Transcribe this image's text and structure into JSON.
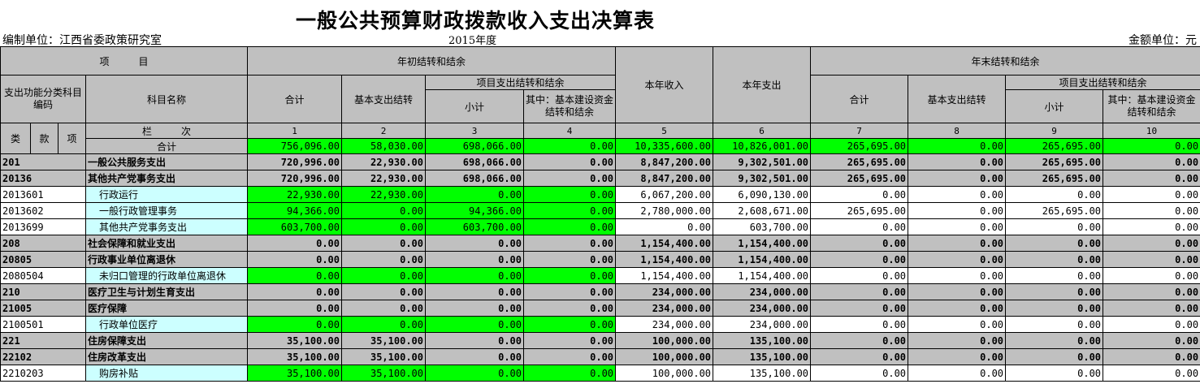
{
  "title": "一般公共预算财政拨款收入支出决算表",
  "unit_label": "编制单位：江西省委政策研究室",
  "year_label": "2015年度",
  "money_label": "金额单位：元",
  "headers": {
    "item": "项　　　目",
    "begin_group": "年初结转和结余",
    "cur_income": "本年收入",
    "cur_expense": "本年支出",
    "end_group": "年末结转和结余",
    "func_code": "支出功能分类科目编码",
    "subject_name": "科目名称",
    "total": "合计",
    "basic": "基本支出结转",
    "project_group": "项目支出结转和结余",
    "subtotal": "小计",
    "capital": "其中：基本建设资金结转和结余",
    "lei": "类",
    "kuan": "款",
    "xiang": "项",
    "lanci": "栏　　　次",
    "col_numbers": [
      "1",
      "2",
      "3",
      "4",
      "5",
      "6",
      "7",
      "8",
      "9",
      "10"
    ]
  },
  "total_row": {
    "label": "合计",
    "values": [
      "756,096.00",
      "58,030.00",
      "698,066.00",
      "0.00",
      "10,335,600.00",
      "10,826,001.00",
      "265,695.00",
      "0.00",
      "265,695.00",
      "0.00"
    ]
  },
  "rows": [
    {
      "code": "201",
      "name": "一般公共服务支出",
      "level": "group",
      "values": [
        "720,996.00",
        "22,930.00",
        "698,066.00",
        "0.00",
        "8,847,200.00",
        "9,302,501.00",
        "265,695.00",
        "0.00",
        "265,695.00",
        "0.00"
      ]
    },
    {
      "code": "20136",
      "name": "其他共产党事务支出",
      "level": "group",
      "values": [
        "720,996.00",
        "22,930.00",
        "698,066.00",
        "0.00",
        "8,847,200.00",
        "9,302,501.00",
        "265,695.00",
        "0.00",
        "265,695.00",
        "0.00"
      ]
    },
    {
      "code": "2013601",
      "name": "行政运行",
      "level": "item",
      "values": [
        "22,930.00",
        "22,930.00",
        "0.00",
        "0.00",
        "6,067,200.00",
        "6,090,130.00",
        "0.00",
        "0.00",
        "0.00",
        "0.00"
      ]
    },
    {
      "code": "2013602",
      "name": "一般行政管理事务",
      "level": "item",
      "values": [
        "94,366.00",
        "0.00",
        "94,366.00",
        "0.00",
        "2,780,000.00",
        "2,608,671.00",
        "265,695.00",
        "0.00",
        "265,695.00",
        "0.00"
      ]
    },
    {
      "code": "2013699",
      "name": "其他共产党事务支出",
      "level": "item",
      "values": [
        "603,700.00",
        "0.00",
        "603,700.00",
        "0.00",
        "0.00",
        "603,700.00",
        "0.00",
        "0.00",
        "0.00",
        "0.00"
      ]
    },
    {
      "code": "208",
      "name": "社会保障和就业支出",
      "level": "group",
      "values": [
        "0.00",
        "0.00",
        "0.00",
        "0.00",
        "1,154,400.00",
        "1,154,400.00",
        "0.00",
        "0.00",
        "0.00",
        "0.00"
      ]
    },
    {
      "code": "20805",
      "name": "行政事业单位离退休",
      "level": "group",
      "values": [
        "0.00",
        "0.00",
        "0.00",
        "0.00",
        "1,154,400.00",
        "1,154,400.00",
        "0.00",
        "0.00",
        "0.00",
        "0.00"
      ]
    },
    {
      "code": "2080504",
      "name": "未归口管理的行政单位离退休",
      "level": "item",
      "values": [
        "0.00",
        "0.00",
        "0.00",
        "0.00",
        "1,154,400.00",
        "1,154,400.00",
        "0.00",
        "0.00",
        "0.00",
        "0.00"
      ]
    },
    {
      "code": "210",
      "name": "医疗卫生与计划生育支出",
      "level": "group",
      "values": [
        "0.00",
        "0.00",
        "0.00",
        "0.00",
        "234,000.00",
        "234,000.00",
        "0.00",
        "0.00",
        "0.00",
        "0.00"
      ]
    },
    {
      "code": "21005",
      "name": "医疗保障",
      "level": "group",
      "values": [
        "0.00",
        "0.00",
        "0.00",
        "0.00",
        "234,000.00",
        "234,000.00",
        "0.00",
        "0.00",
        "0.00",
        "0.00"
      ]
    },
    {
      "code": "2100501",
      "name": "行政单位医疗",
      "level": "item",
      "values": [
        "0.00",
        "0.00",
        "0.00",
        "0.00",
        "234,000.00",
        "234,000.00",
        "0.00",
        "0.00",
        "0.00",
        "0.00"
      ]
    },
    {
      "code": "221",
      "name": "住房保障支出",
      "level": "group",
      "values": [
        "35,100.00",
        "35,100.00",
        "0.00",
        "0.00",
        "100,000.00",
        "135,100.00",
        "0.00",
        "0.00",
        "0.00",
        "0.00"
      ]
    },
    {
      "code": "22102",
      "name": "住房改革支出",
      "level": "group",
      "values": [
        "35,100.00",
        "35,100.00",
        "0.00",
        "0.00",
        "100,000.00",
        "135,100.00",
        "0.00",
        "0.00",
        "0.00",
        "0.00"
      ]
    },
    {
      "code": "2210203",
      "name": "购房补贴",
      "level": "item",
      "values": [
        "35,100.00",
        "35,100.00",
        "0.00",
        "0.00",
        "100,000.00",
        "135,100.00",
        "0.00",
        "0.00",
        "0.00",
        "0.00"
      ]
    }
  ]
}
